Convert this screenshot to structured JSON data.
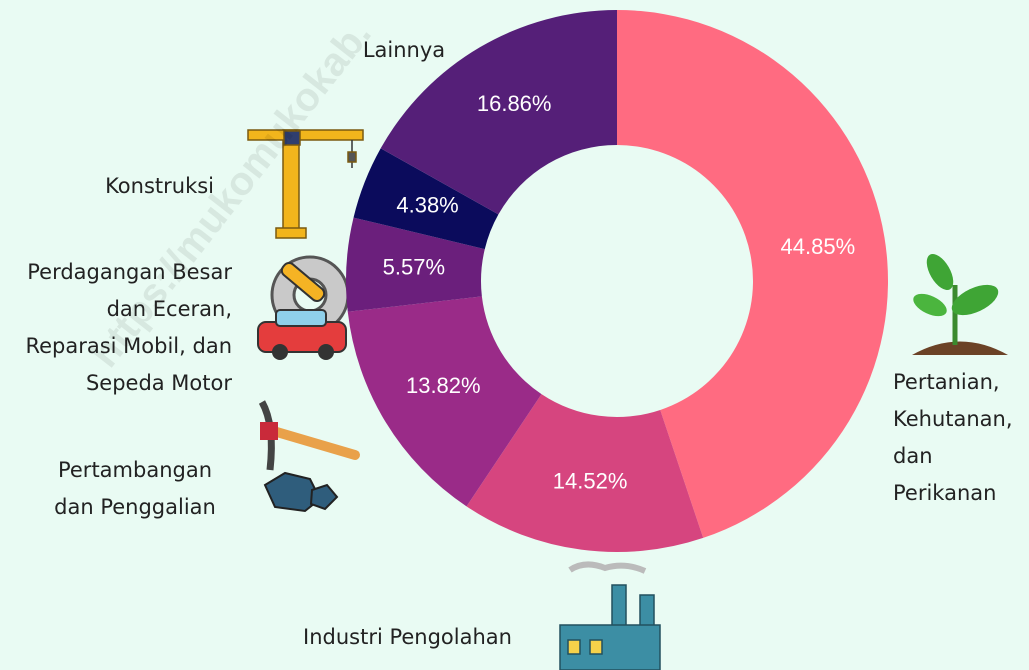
{
  "chart_data": {
    "type": "donut",
    "watermark": "https://mukomukokab.",
    "categories": [
      "Pertanian,\nKehutanan,\ndan\nPerikanan",
      "Industri Pengolahan",
      "Pertambangan\ndan Penggalian",
      "Perdagangan Besar\ndan Eceran,\nReparasi Mobil, dan\nSepeda Motor",
      "Konstruksi",
      "Lainnya"
    ],
    "values": [
      44.85,
      14.52,
      13.82,
      5.57,
      4.38,
      16.86
    ],
    "value_labels": [
      "44.85%",
      "14.52%",
      "13.82%",
      "5.57%",
      "4.38%",
      "16.86%"
    ],
    "colors": [
      "#ff6b81",
      "#d6457f",
      "#9a2b88",
      "#6b1f7c",
      "#0b0b5c",
      "#551f78"
    ]
  }
}
